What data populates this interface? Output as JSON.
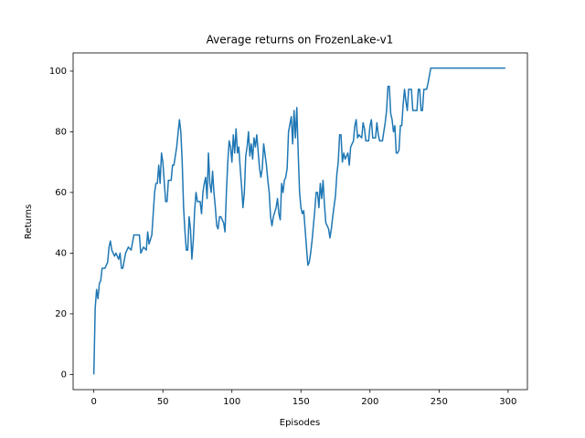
{
  "chart_data": {
    "type": "line",
    "title": "Average returns on FrozenLake-v1",
    "xlabel": "Episodes",
    "ylabel": "Returns",
    "color": "#1f77b4",
    "x": [
      0,
      1,
      2,
      3,
      4,
      5,
      6,
      8,
      10,
      11,
      12,
      13,
      15,
      16,
      18,
      19,
      20,
      21,
      23,
      25,
      27,
      29,
      31,
      33,
      34,
      36,
      38,
      39,
      40,
      42,
      44,
      45,
      46,
      47,
      48,
      49,
      50,
      52,
      53,
      54,
      56,
      57,
      58,
      60,
      62,
      63,
      64,
      65,
      66,
      67,
      68,
      69,
      70,
      71,
      72,
      73,
      74,
      75,
      77,
      78,
      79,
      80,
      81,
      82,
      83,
      84,
      85,
      86,
      87,
      88,
      89,
      90,
      91,
      92,
      94,
      95,
      96,
      97,
      98,
      99,
      100,
      101,
      102,
      103,
      104,
      105,
      106,
      107,
      108,
      109,
      110,
      111,
      112,
      113,
      114,
      115,
      116,
      117,
      118,
      120,
      121,
      122,
      123,
      125,
      126,
      127,
      128,
      129,
      130,
      132,
      133,
      134,
      135,
      136,
      137,
      138,
      139,
      140,
      141,
      143,
      144,
      145,
      146,
      147,
      148,
      149,
      150,
      151,
      152,
      153,
      154,
      155,
      156,
      157,
      158,
      160,
      161,
      162,
      163,
      164,
      165,
      166,
      167,
      168,
      169,
      170,
      171,
      172,
      173,
      175,
      176,
      177,
      178,
      179,
      180,
      181,
      182,
      184,
      185,
      186,
      188,
      189,
      190,
      191,
      192,
      194,
      195,
      196,
      197,
      199,
      200,
      201,
      202,
      204,
      205,
      206,
      207,
      209,
      211,
      212,
      213,
      214,
      215,
      216,
      217,
      218,
      219,
      220,
      221,
      222,
      223,
      224,
      225,
      226,
      227,
      228,
      230,
      231,
      233,
      234,
      235,
      236,
      237,
      238,
      239,
      241,
      242,
      244,
      298
    ],
    "values": [
      0,
      22,
      28,
      25,
      30,
      31,
      35,
      35,
      37,
      42,
      44,
      41,
      39,
      40,
      38,
      40,
      35,
      35,
      40,
      42,
      41,
      46,
      46,
      46,
      40,
      42,
      41,
      47,
      43,
      46,
      60,
      63,
      63,
      69,
      63,
      73,
      70,
      57,
      57,
      64,
      64,
      69,
      69,
      75,
      84,
      80,
      70,
      55,
      47,
      41,
      41,
      52,
      48,
      38,
      44,
      54,
      60,
      57,
      57,
      53,
      60,
      63,
      65,
      58,
      73,
      63,
      60,
      67,
      60,
      55,
      49,
      48,
      52,
      52,
      50,
      47,
      60,
      70,
      77,
      75,
      70,
      79,
      73,
      81,
      73,
      75,
      68,
      62,
      55,
      60,
      72,
      75,
      80,
      72,
      76,
      71,
      78,
      75,
      79,
      68,
      65,
      68,
      76,
      69,
      64,
      60,
      52,
      49,
      52,
      55,
      58,
      53,
      51,
      63,
      60,
      64,
      65,
      68,
      80,
      85,
      76,
      87,
      78,
      88,
      73,
      60,
      55,
      53,
      54,
      48,
      42,
      36,
      37,
      40,
      44,
      54,
      60,
      60,
      55,
      63,
      58,
      64,
      56,
      50,
      49,
      48,
      45,
      48,
      52,
      59,
      66,
      70,
      79,
      79,
      70,
      73,
      71,
      73,
      69,
      75,
      77,
      82,
      84,
      78,
      79,
      78,
      83,
      81,
      77,
      77,
      82,
      84,
      78,
      78,
      83,
      79,
      77,
      77,
      83,
      87,
      95,
      95,
      86,
      84,
      80,
      82,
      73,
      73,
      74,
      82,
      82,
      89,
      94,
      90,
      87,
      94,
      94,
      87,
      87,
      87,
      94,
      94,
      87,
      87,
      94,
      94,
      96,
      101,
      101
    ],
    "xlim": [
      -15,
      314
    ],
    "ylim": [
      -5,
      106
    ],
    "xticks": [
      0,
      50,
      100,
      150,
      200,
      250,
      300
    ],
    "yticks": [
      0,
      20,
      40,
      60,
      80,
      100
    ]
  }
}
